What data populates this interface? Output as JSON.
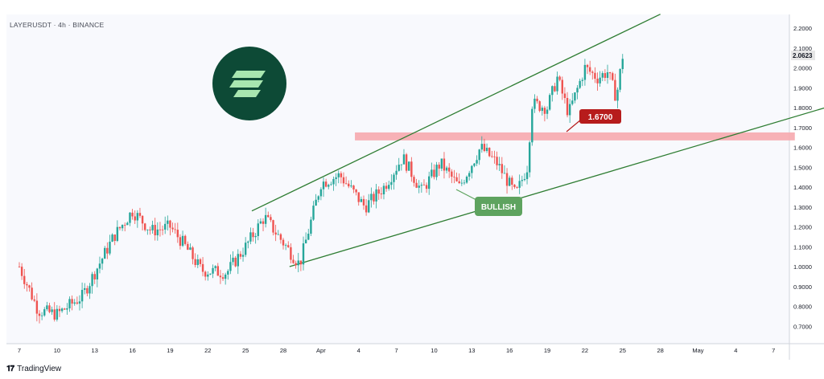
{
  "header": {
    "title": "LAYERUSDT · 4h · BINANCE"
  },
  "footer": {
    "brand": "TradingView"
  },
  "annotations": {
    "level_label": "1.6700",
    "bias_label": "BULLISH"
  },
  "colors": {
    "up": "#26a69a",
    "down": "#ef5350",
    "trend": "#2e7d32",
    "zone": "#f6a9ae",
    "level_badge": "#b71c1c",
    "bullish_badge": "#5ea35f",
    "logo_bg": "#0d4a36",
    "logo_fg": "#a8e6b0",
    "last_price_bg": "#e6e6e6"
  },
  "chart_data": {
    "type": "candlestick",
    "symbol": "LAYERUSDT",
    "timeframe": "4h",
    "exchange": "BINANCE",
    "ylim": [
      0.6,
      2.25
    ],
    "y_ticks": [
      "2.2000",
      "2.1000",
      "2.0000",
      "1.9000",
      "1.8000",
      "1.7000",
      "1.6000",
      "1.5000",
      "1.4000",
      "1.3000",
      "1.2000",
      "1.1000",
      "1.0000",
      "0.9000",
      "0.8000",
      "0.7000"
    ],
    "last_price": "2.0623",
    "x_ticks": [
      "7",
      "10",
      "13",
      "16",
      "19",
      "22",
      "25",
      "28",
      "Apr",
      "4",
      "7",
      "10",
      "13",
      "16",
      "19",
      "22",
      "25",
      "28",
      "May",
      "4",
      "7"
    ],
    "key_level": 1.67,
    "close_path": [
      {
        "t": 0,
        "c": 1.0
      },
      {
        "t": 1.5,
        "c": 0.78
      },
      {
        "t": 3,
        "c": 0.76
      },
      {
        "t": 5,
        "c": 0.85
      },
      {
        "t": 7.5,
        "c": 1.15
      },
      {
        "t": 9,
        "c": 1.28
      },
      {
        "t": 10.5,
        "c": 1.18
      },
      {
        "t": 12,
        "c": 1.2
      },
      {
        "t": 13,
        "c": 1.12
      },
      {
        "t": 14.5,
        "c": 0.98
      },
      {
        "t": 16.5,
        "c": 0.97
      },
      {
        "t": 18,
        "c": 1.1
      },
      {
        "t": 19.5,
        "c": 1.25
      },
      {
        "t": 21,
        "c": 1.12
      },
      {
        "t": 22.3,
        "c": 1.01
      },
      {
        "t": 24,
        "c": 1.42
      },
      {
        "t": 25.5,
        "c": 1.46
      },
      {
        "t": 27.5,
        "c": 1.3
      },
      {
        "t": 29,
        "c": 1.4
      },
      {
        "t": 30.5,
        "c": 1.55
      },
      {
        "t": 32,
        "c": 1.38
      },
      {
        "t": 33.5,
        "c": 1.52
      },
      {
        "t": 35,
        "c": 1.4
      },
      {
        "t": 36.7,
        "c": 1.6
      },
      {
        "t": 38,
        "c": 1.52
      },
      {
        "t": 39.5,
        "c": 1.36
      },
      {
        "t": 40.4,
        "c": 1.5
      },
      {
        "t": 40.8,
        "c": 1.82
      },
      {
        "t": 42,
        "c": 1.8
      },
      {
        "t": 42.8,
        "c": 1.95
      },
      {
        "t": 43.7,
        "c": 1.77
      },
      {
        "t": 45,
        "c": 2.0
      },
      {
        "t": 46,
        "c": 1.95
      },
      {
        "t": 46.8,
        "c": 1.98
      },
      {
        "t": 47.5,
        "c": 1.85
      },
      {
        "t": 48,
        "c": 2.06
      }
    ],
    "trendlines": [
      {
        "name": "upper",
        "from": {
          "t": 18.5,
          "p": 1.28
        },
        "to": {
          "t": 51,
          "p": 2.27
        }
      },
      {
        "name": "lower",
        "from": {
          "t": 21.5,
          "p": 1.0
        },
        "to": {
          "t": 70,
          "p": 1.91
        }
      }
    ],
    "zone": {
      "from_t": 26.7,
      "to_t": 61.7,
      "low": 1.635,
      "high": 1.675
    }
  }
}
